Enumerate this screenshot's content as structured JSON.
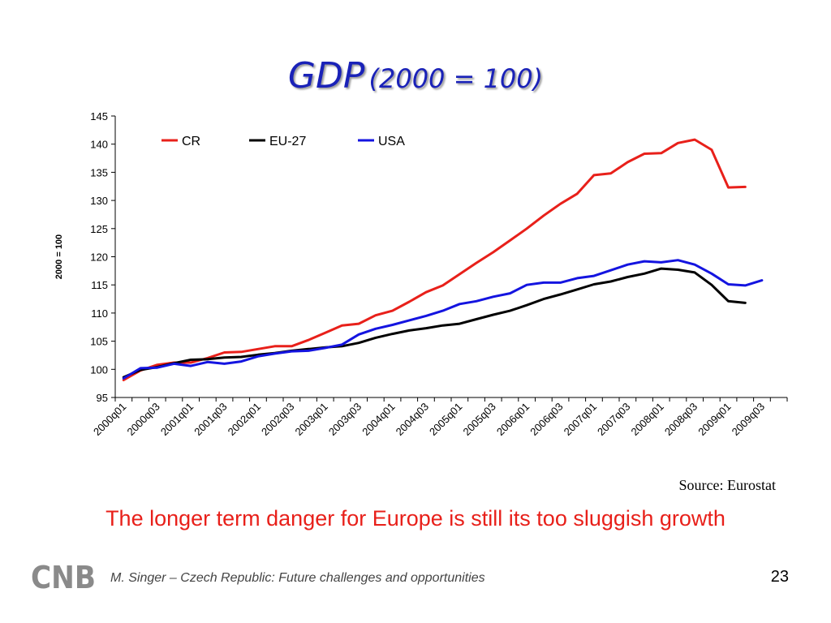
{
  "slide": {
    "title": "GDP",
    "title_paren": "(2000 = 100)",
    "source": "Source: Eurostat",
    "caption": "The longer term danger for Europe is still its too sluggish growth",
    "footer": "M. Singer – Czech Republic: Future challenges and opportunities",
    "page_number": "23",
    "logo_text": "CNB"
  },
  "chart_data": {
    "type": "line",
    "title": "",
    "xlabel": "",
    "ylabel": "2000 = 100",
    "ylim": [
      95,
      145
    ],
    "yticks": [
      95,
      100,
      105,
      110,
      115,
      120,
      125,
      130,
      135,
      140,
      145
    ],
    "grid": false,
    "legend_position": "top",
    "x": [
      "2000q01",
      "2000q02",
      "2000q03",
      "2000q04",
      "2001q01",
      "2001q02",
      "2001q03",
      "2001q04",
      "2002q01",
      "2002q02",
      "2002q03",
      "2002q04",
      "2003q01",
      "2003q02",
      "2003q03",
      "2003q04",
      "2004q01",
      "2004q02",
      "2004q03",
      "2004q04",
      "2005q01",
      "2005q02",
      "2005q03",
      "2005q04",
      "2006q01",
      "2006q02",
      "2006q03",
      "2006q04",
      "2007q01",
      "2007q02",
      "2007q03",
      "2007q04",
      "2008q01",
      "2008q02",
      "2008q03",
      "2008q04",
      "2009q01",
      "2009q02",
      "2009q03",
      "2009q04"
    ],
    "tick_labels": [
      "2000q01",
      "2000q03",
      "2001q01",
      "2001q03",
      "2002q01",
      "2002q03",
      "2003q01",
      "2003q03",
      "2004q01",
      "2004q03",
      "2005q01",
      "2005q03",
      "2006q01",
      "2006q03",
      "2007q01",
      "2007q03",
      "2008q01",
      "2008q03",
      "2009q01",
      "2009q03"
    ],
    "series": [
      {
        "name": "CR",
        "color": "#e8201a",
        "values": [
          98.1,
          99.8,
          100.8,
          101.2,
          101.2,
          102.0,
          103.0,
          103.1,
          103.6,
          104.1,
          104.1,
          105.2,
          106.5,
          107.8,
          108.1,
          109.6,
          110.4,
          112.0,
          113.7,
          114.9,
          116.9,
          118.9,
          120.8,
          122.9,
          125.0,
          127.3,
          129.4,
          131.2,
          134.5,
          134.8,
          136.8,
          138.3,
          138.4,
          140.2,
          140.8,
          139.0,
          132.3,
          132.4,
          null,
          null
        ]
      },
      {
        "name": "EU-27",
        "color": "#000000",
        "values": [
          98.6,
          99.9,
          100.4,
          101.1,
          101.7,
          101.8,
          102.1,
          102.2,
          102.6,
          102.9,
          103.3,
          103.6,
          103.9,
          104.1,
          104.7,
          105.6,
          106.3,
          106.9,
          107.3,
          107.8,
          108.1,
          108.9,
          109.7,
          110.4,
          111.4,
          112.5,
          113.3,
          114.2,
          115.1,
          115.6,
          116.4,
          117.0,
          117.9,
          117.7,
          117.2,
          115.0,
          112.1,
          111.8,
          null,
          null
        ]
      },
      {
        "name": "USA",
        "color": "#1414e0",
        "values": [
          98.4,
          100.2,
          100.3,
          101.0,
          100.6,
          101.3,
          101.0,
          101.4,
          102.3,
          102.8,
          103.2,
          103.3,
          103.8,
          104.4,
          106.2,
          107.2,
          107.9,
          108.7,
          109.5,
          110.4,
          111.6,
          112.1,
          112.9,
          113.5,
          115.0,
          115.4,
          115.4,
          116.2,
          116.6,
          117.6,
          118.6,
          119.2,
          119.0,
          119.4,
          118.6,
          117.0,
          115.1,
          114.9,
          115.8,
          null
        ]
      }
    ]
  }
}
